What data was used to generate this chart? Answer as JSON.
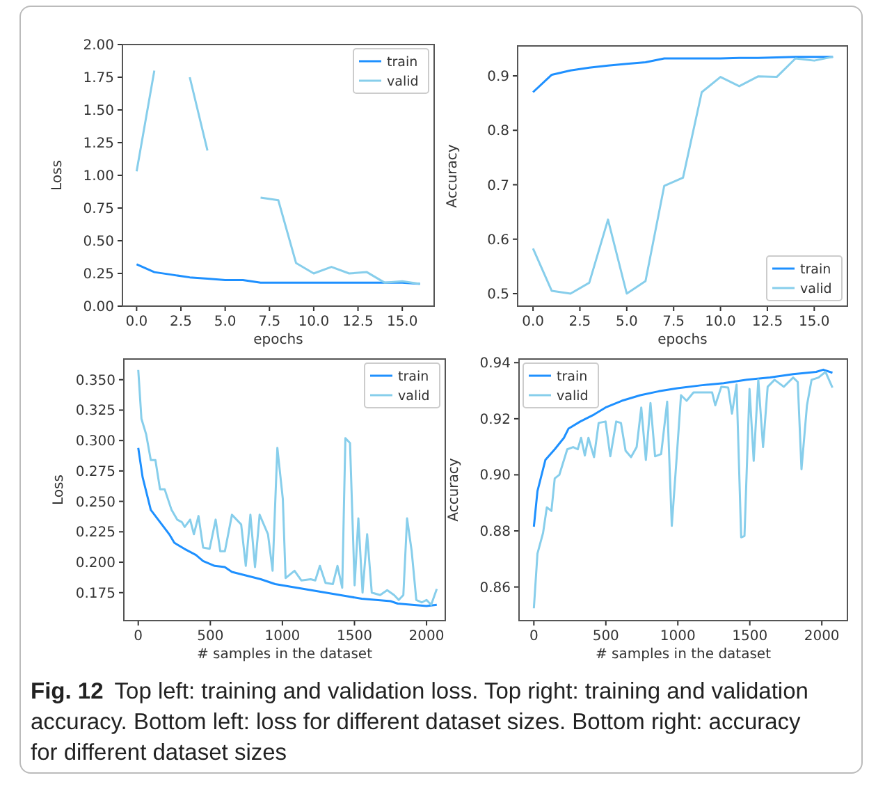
{
  "chart_data": [
    {
      "type": "line",
      "xlabel": "epochs",
      "ylabel": "Loss",
      "legend": "top right",
      "x": [
        0,
        1,
        2,
        3,
        4,
        5,
        6,
        7,
        8,
        9,
        10,
        11,
        12,
        13,
        14,
        15,
        16
      ],
      "xlim": [
        -0.8,
        16.8
      ],
      "xticks": [
        {
          "value": 0,
          "label": "0.0"
        },
        {
          "value": 2.5,
          "label": "2.5"
        },
        {
          "value": 5,
          "label": "5.0"
        },
        {
          "value": 7.5,
          "label": "7.5"
        },
        {
          "value": 10,
          "label": "10.0"
        },
        {
          "value": 12.5,
          "label": "12.5"
        },
        {
          "value": 15,
          "label": "15.0"
        }
      ],
      "ylim": [
        0,
        2
      ],
      "yticks": [
        {
          "value": 0,
          "label": "0.00"
        },
        {
          "value": 0.25,
          "label": "0.25"
        },
        {
          "value": 0.5,
          "label": "0.50"
        },
        {
          "value": 0.75,
          "label": "0.75"
        },
        {
          "value": 1,
          "label": "1.00"
        },
        {
          "value": 1.25,
          "label": "1.25"
        },
        {
          "value": 1.5,
          "label": "1.50"
        },
        {
          "value": 1.75,
          "label": "1.75"
        },
        {
          "value": 2,
          "label": "2.00"
        }
      ],
      "series": [
        {
          "name": "train",
          "color": "#1e90ff",
          "values": [
            0.32,
            0.26,
            0.24,
            0.22,
            0.21,
            0.2,
            0.2,
            0.18,
            0.18,
            0.18,
            0.18,
            0.18,
            0.18,
            0.18,
            0.18,
            0.18,
            0.17
          ]
        },
        {
          "name": "valid",
          "color": "#87ceeb",
          "values": [
            1.03,
            1.8,
            null,
            1.75,
            1.19,
            null,
            null,
            0.83,
            0.81,
            0.33,
            0.25,
            0.3,
            0.25,
            0.26,
            0.18,
            0.19,
            0.17
          ]
        }
      ]
    },
    {
      "type": "line",
      "xlabel": "epochs",
      "ylabel": "Accuracy",
      "legend": "bottom right",
      "x": [
        0,
        1,
        2,
        3,
        4,
        5,
        6,
        7,
        8,
        9,
        10,
        11,
        12,
        13,
        14,
        15,
        16
      ],
      "xlim": [
        -0.82,
        16.77
      ],
      "xticks": [
        {
          "value": 0,
          "label": "0.0"
        },
        {
          "value": 2.5,
          "label": "2.5"
        },
        {
          "value": 5,
          "label": "5.0"
        },
        {
          "value": 7.5,
          "label": "7.5"
        },
        {
          "value": 10,
          "label": "10.0"
        },
        {
          "value": 12.5,
          "label": "12.5"
        },
        {
          "value": 15,
          "label": "15.0"
        }
      ],
      "ylim": [
        0.477,
        0.955
      ],
      "yticks": [
        0.5,
        0.6,
        0.7,
        0.8,
        0.9
      ],
      "series": [
        {
          "name": "train",
          "color": "#1e90ff",
          "values": [
            0.87,
            0.902,
            0.91,
            0.915,
            0.919,
            0.922,
            0.925,
            0.932,
            0.932,
            0.932,
            0.932,
            0.933,
            0.933,
            0.934,
            0.935,
            0.935,
            0.935
          ]
        },
        {
          "name": "valid",
          "color": "#87ceeb",
          "values": [
            0.583,
            0.505,
            0.5,
            0.52,
            0.636,
            0.5,
            0.523,
            0.698,
            0.713,
            0.87,
            0.898,
            0.881,
            0.899,
            0.898,
            0.932,
            0.928,
            0.935
          ]
        }
      ]
    },
    {
      "type": "line",
      "xlabel": "# samples in the dataset",
      "ylabel": "Loss",
      "legend": "top right",
      "xlim": [
        -100,
        2130
      ],
      "xticks": [
        0,
        500,
        1000,
        1500,
        2000
      ],
      "ylim": [
        0.152,
        0.367
      ],
      "yticks": [
        0.175,
        {
          "value": 0.2,
          "label": "0.200"
        },
        0.225,
        {
          "value": 0.25,
          "label": "0.250"
        },
        0.275,
        {
          "value": 0.3,
          "label": "0.300"
        },
        0.325,
        {
          "value": 0.35,
          "label": "0.350"
        }
      ],
      "series": [
        {
          "name": "train",
          "color": "#1e90ff",
          "x": [
            0,
            30,
            87,
            151,
            215,
            250,
            320,
            400,
            450,
            530,
            600,
            650,
            750,
            850,
            950,
            1050,
            1150,
            1250,
            1350,
            1450,
            1550,
            1650,
            1750,
            1800,
            1900,
            2000,
            2071
          ],
          "values": [
            0.294,
            0.27,
            0.243,
            0.233,
            0.223,
            0.216,
            0.211,
            0.206,
            0.201,
            0.197,
            0.196,
            0.192,
            0.189,
            0.186,
            0.182,
            0.18,
            0.178,
            0.176,
            0.174,
            0.172,
            0.17,
            0.169,
            0.168,
            0.166,
            0.165,
            0.164,
            0.165
          ]
        },
        {
          "name": "valid",
          "color": "#87ceeb",
          "x": [
            0,
            22,
            55,
            87,
            119,
            151,
            183,
            231,
            270,
            302,
            322,
            360,
            386,
            418,
            450,
            495,
            537,
            569,
            601,
            650,
            714,
            746,
            778,
            810,
            842,
            900,
            932,
            965,
            1003,
            1022,
            1084,
            1132,
            1196,
            1228,
            1260,
            1299,
            1350,
            1382,
            1415,
            1437,
            1469,
            1501,
            1527,
            1556,
            1588,
            1620,
            1678,
            1727,
            1775,
            1807,
            1839,
            1865,
            1897,
            1929,
            1968,
            2000,
            2032,
            2071
          ],
          "values": [
            0.358,
            0.318,
            0.305,
            0.284,
            0.284,
            0.26,
            0.26,
            0.243,
            0.235,
            0.233,
            0.229,
            0.235,
            0.223,
            0.238,
            0.212,
            0.211,
            0.235,
            0.209,
            0.209,
            0.239,
            0.231,
            0.197,
            0.239,
            0.196,
            0.239,
            0.223,
            0.193,
            0.294,
            0.252,
            0.187,
            0.193,
            0.185,
            0.186,
            0.185,
            0.197,
            0.183,
            0.182,
            0.197,
            0.179,
            0.302,
            0.298,
            0.181,
            0.236,
            0.175,
            0.223,
            0.175,
            0.173,
            0.177,
            0.173,
            0.169,
            0.173,
            0.236,
            0.209,
            0.169,
            0.167,
            0.169,
            0.165,
            0.178
          ]
        }
      ]
    },
    {
      "type": "line",
      "xlabel": "# samples in the dataset",
      "ylabel": "Accuracy",
      "legend": "top left",
      "xlim": [
        -103,
        2178
      ],
      "xticks": [
        0,
        500,
        1000,
        1500,
        2000
      ],
      "ylim": [
        0.848,
        0.9413
      ],
      "yticks": [
        0.86,
        0.88,
        {
          "value": 0.9,
          "label": "0.90"
        },
        0.92,
        0.94
      ],
      "series": [
        {
          "name": "train",
          "color": "#1e90ff",
          "x": [
            0,
            25,
            80,
            145,
            209,
            241,
            322,
            418,
            498,
            611,
            740,
            868,
            997,
            1158,
            1318,
            1479,
            1640,
            1801,
            1961,
            2010,
            2074
          ],
          "values": [
            0.8815,
            0.8942,
            0.9053,
            0.9091,
            0.9132,
            0.9165,
            0.919,
            0.9215,
            0.924,
            0.9264,
            0.9284,
            0.9298,
            0.9309,
            0.9319,
            0.9327,
            0.9339,
            0.9347,
            0.9359,
            0.9367,
            0.9375,
            0.9364
          ]
        },
        {
          "name": "valid",
          "color": "#87ceeb",
          "x": [
            0,
            25,
            64,
            90,
            122,
            145,
            177,
            232,
            273,
            305,
            328,
            354,
            379,
            418,
            450,
            498,
            531,
            572,
            605,
            637,
            675,
            714,
            746,
            778,
            810,
            842,
            884,
            926,
            958,
            997,
            1022,
            1061,
            1109,
            1190,
            1238,
            1260,
            1302,
            1350,
            1376,
            1408,
            1440,
            1463,
            1498,
            1527,
            1559,
            1592,
            1624,
            1672,
            1736,
            1801,
            1833,
            1859,
            1897,
            1929,
            1977,
            2026,
            2074
          ],
          "values": [
            0.8524,
            0.8719,
            0.8793,
            0.8884,
            0.8871,
            0.8987,
            0.9,
            0.9091,
            0.9099,
            0.9091,
            0.9132,
            0.9069,
            0.9132,
            0.9063,
            0.9185,
            0.919,
            0.9066,
            0.919,
            0.9185,
            0.9086,
            0.9063,
            0.9099,
            0.924,
            0.9053,
            0.9256,
            0.9066,
            0.9074,
            0.9261,
            0.8818,
            0.9099,
            0.9284,
            0.9264,
            0.9294,
            0.9294,
            0.9294,
            0.9248,
            0.9314,
            0.9311,
            0.9218,
            0.9322,
            0.8777,
            0.8782,
            0.9306,
            0.905,
            0.9339,
            0.9099,
            0.9314,
            0.9339,
            0.9314,
            0.9347,
            0.9331,
            0.902,
            0.9248,
            0.9339,
            0.9347,
            0.9367,
            0.9311
          ]
        }
      ],
      "annotations": [
        "Fig. 12",
        "Top left: training and validation loss. Top right: training and validation accuracy. Bottom left: loss for different dataset sizes. Bottom right: accuracy for different dataset sizes"
      ]
    }
  ]
}
